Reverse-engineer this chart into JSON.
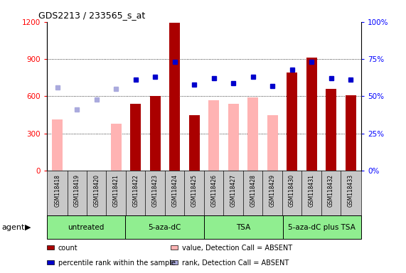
{
  "title": "GDS2213 / 233565_s_at",
  "samples": [
    "GSM118418",
    "GSM118419",
    "GSM118420",
    "GSM118421",
    "GSM118422",
    "GSM118423",
    "GSM118424",
    "GSM118425",
    "GSM118426",
    "GSM118427",
    "GSM118428",
    "GSM118429",
    "GSM118430",
    "GSM118431",
    "GSM118432",
    "GSM118433"
  ],
  "group_names": [
    "untreated",
    "5-aza-dC",
    "TSA",
    "5-aza-dC plus TSA"
  ],
  "group_ranges": [
    [
      0,
      4
    ],
    [
      4,
      8
    ],
    [
      8,
      12
    ],
    [
      12,
      16
    ]
  ],
  "count_present": [
    null,
    null,
    null,
    null,
    540,
    600,
    1190,
    450,
    null,
    null,
    null,
    null,
    790,
    910,
    660,
    610
  ],
  "count_absent": [
    410,
    null,
    null,
    380,
    null,
    null,
    null,
    null,
    570,
    540,
    590,
    450,
    null,
    null,
    null,
    null
  ],
  "rank_present": [
    null,
    null,
    null,
    null,
    61,
    63,
    73,
    58,
    62,
    59,
    63,
    57,
    68,
    73,
    62,
    61
  ],
  "rank_absent": [
    56,
    41,
    48,
    55,
    null,
    null,
    null,
    null,
    null,
    null,
    null,
    null,
    null,
    null,
    null,
    null
  ],
  "ylim_left": [
    0,
    1200
  ],
  "ylim_right": [
    0,
    100
  ],
  "yticks_left": [
    0,
    300,
    600,
    900,
    1200
  ],
  "yticks_right": [
    0,
    25,
    50,
    75,
    100
  ],
  "bar_color_present": "#aa0000",
  "bar_color_absent": "#ffb3b3",
  "dot_color_present": "#0000cc",
  "dot_color_absent": "#aaaadd",
  "background_color": "#ffffff",
  "green_color": "#90ee90",
  "gray_color": "#c8c8c8",
  "legend": [
    {
      "label": "count",
      "color": "#aa0000"
    },
    {
      "label": "percentile rank within the sample",
      "color": "#0000cc"
    },
    {
      "label": "value, Detection Call = ABSENT",
      "color": "#ffb3b3"
    },
    {
      "label": "rank, Detection Call = ABSENT",
      "color": "#aaaadd"
    }
  ]
}
